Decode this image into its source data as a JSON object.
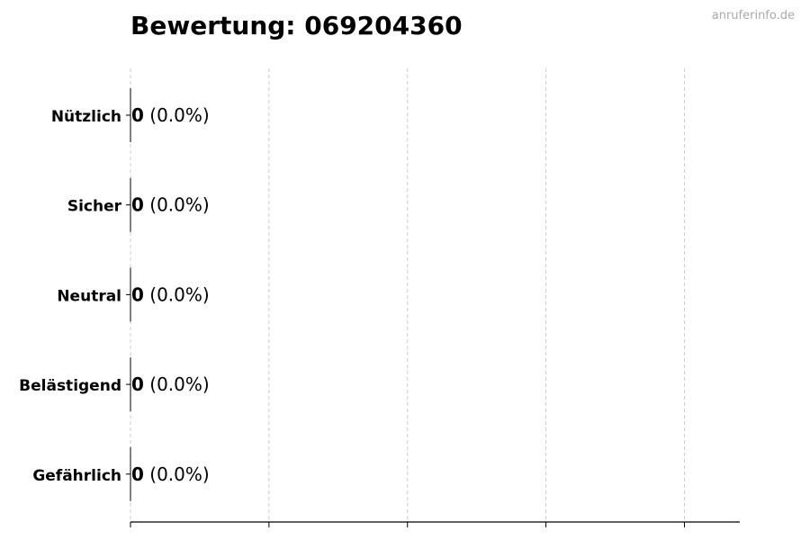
{
  "chart_data": {
    "type": "bar",
    "orientation": "horizontal",
    "title": "Bewertung: 069204360",
    "categories": [
      "Nützlich",
      "Sicher",
      "Neutral",
      "Belästigend",
      "Gefährlich"
    ],
    "values": [
      0,
      0,
      0,
      0,
      0
    ],
    "labels": [
      {
        "count": "0",
        "pct": "(0.0%)"
      },
      {
        "count": "0",
        "pct": "(0.0%)"
      },
      {
        "count": "0",
        "pct": "(0.0%)"
      },
      {
        "count": "0",
        "pct": "(0.0%)"
      },
      {
        "count": "0",
        "pct": "(0.0%)"
      }
    ],
    "xlim": [
      0,
      4.4
    ],
    "xticks": [
      0,
      1,
      2,
      3,
      4
    ],
    "xtick_labels_shown": false,
    "grid": "x dashed",
    "bar_edge_color": "#000000"
  },
  "watermark": "anruferinfo.de"
}
